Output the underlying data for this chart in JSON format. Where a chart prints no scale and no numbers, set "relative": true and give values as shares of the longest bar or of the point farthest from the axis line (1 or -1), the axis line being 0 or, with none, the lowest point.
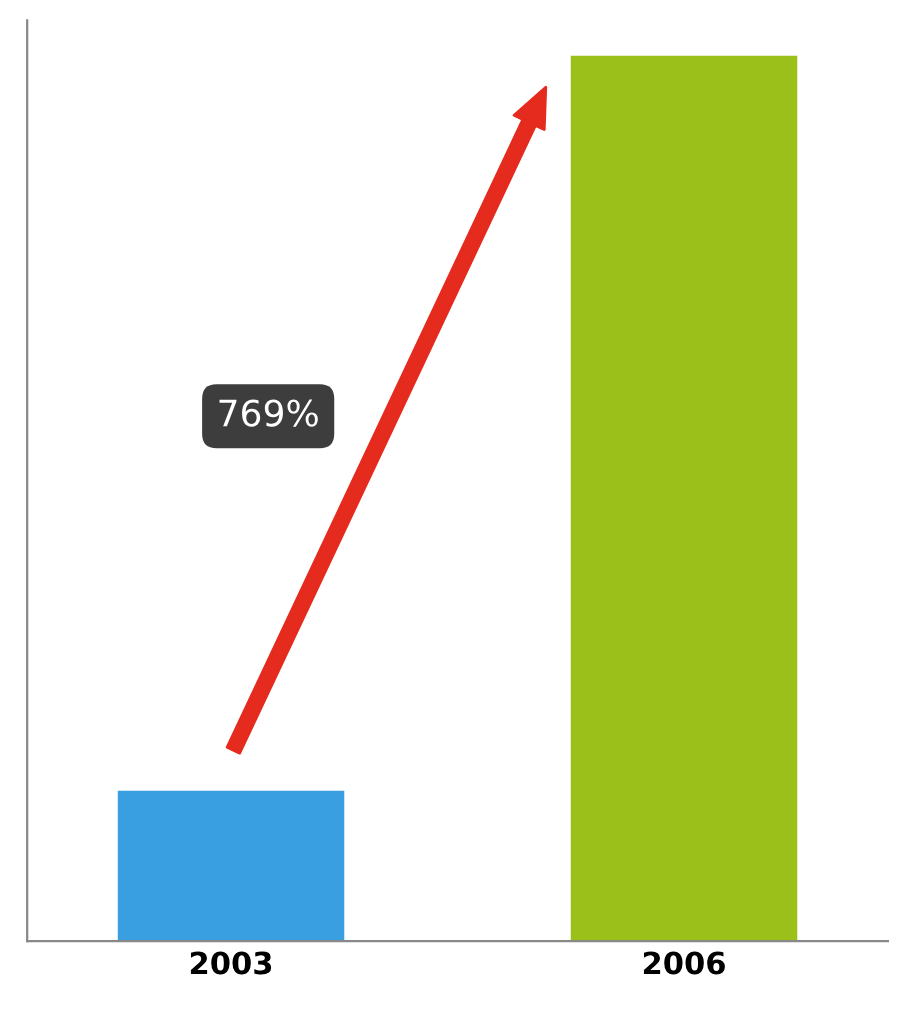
{
  "chart_data": {
    "type": "bar",
    "relative": true,
    "categories": [
      "2003",
      "2006"
    ],
    "values": [
      0.17,
      1
    ],
    "colors": [
      "#3a9fe0",
      "#9cc01a"
    ],
    "annotations": [
      "769%"
    ]
  }
}
